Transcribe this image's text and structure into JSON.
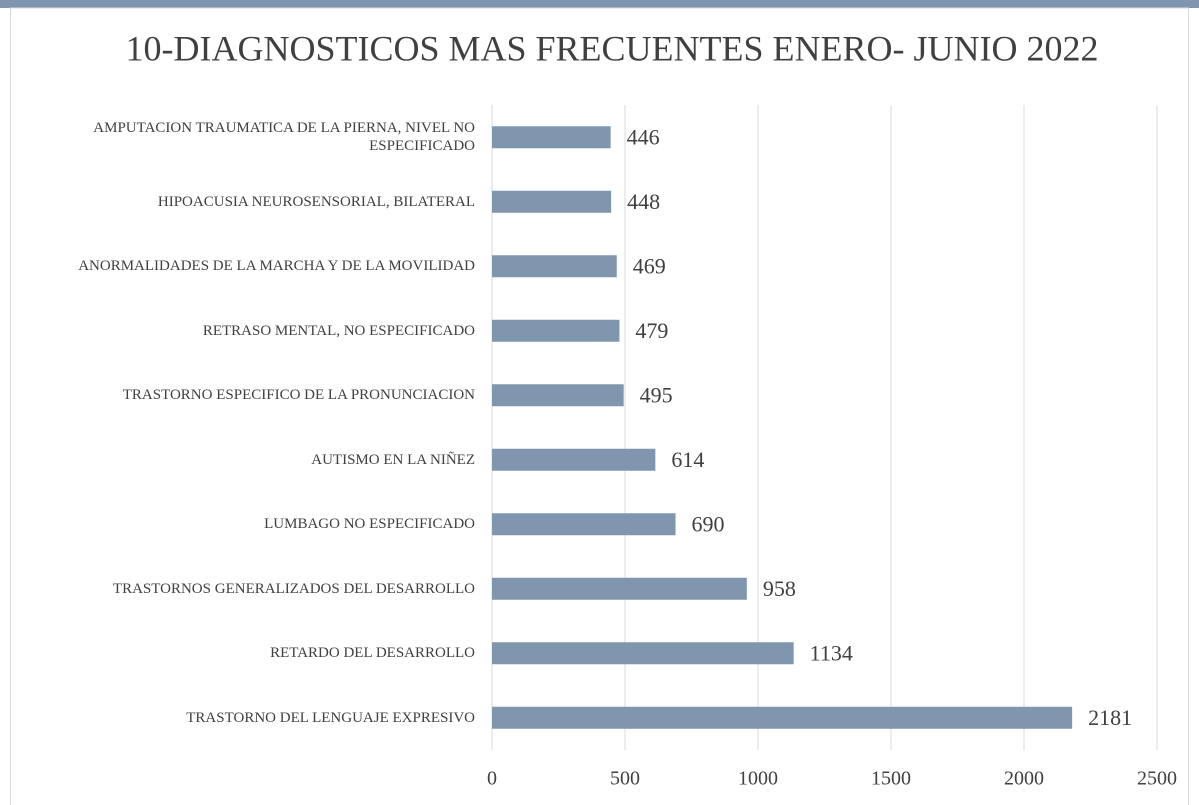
{
  "chart_data": {
    "type": "bar",
    "orientation": "horizontal",
    "title": "10-DIAGNOSTICOS MAS FRECUENTES ENERO- JUNIO 2022",
    "categories": [
      "AMPUTACION TRAUMATICA DE LA PIERNA, NIVEL NO ESPECIFICADO",
      "HIPOACUSIA NEUROSENSORIAL, BILATERAL",
      "ANORMALIDADES DE LA MARCHA Y DE LA MOVILIDAD",
      "RETRASO MENTAL, NO ESPECIFICADO",
      "TRASTORNO ESPECIFICO DE LA PRONUNCIACION",
      "AUTISMO EN LA NIÑEZ",
      "LUMBAGO NO ESPECIFICADO",
      "TRASTORNOS GENERALIZADOS DEL DESARROLLO",
      "RETARDO DEL DESARROLLO",
      "TRASTORNO DEL LENGUAJE EXPRESIVO"
    ],
    "values": [
      446,
      448,
      469,
      479,
      495,
      614,
      690,
      958,
      1134,
      2181
    ],
    "color": "#7f96ae",
    "xlim": [
      0,
      2500
    ],
    "xticks": [
      0,
      500,
      1000,
      1500,
      2000,
      2500
    ],
    "grid": true
  }
}
